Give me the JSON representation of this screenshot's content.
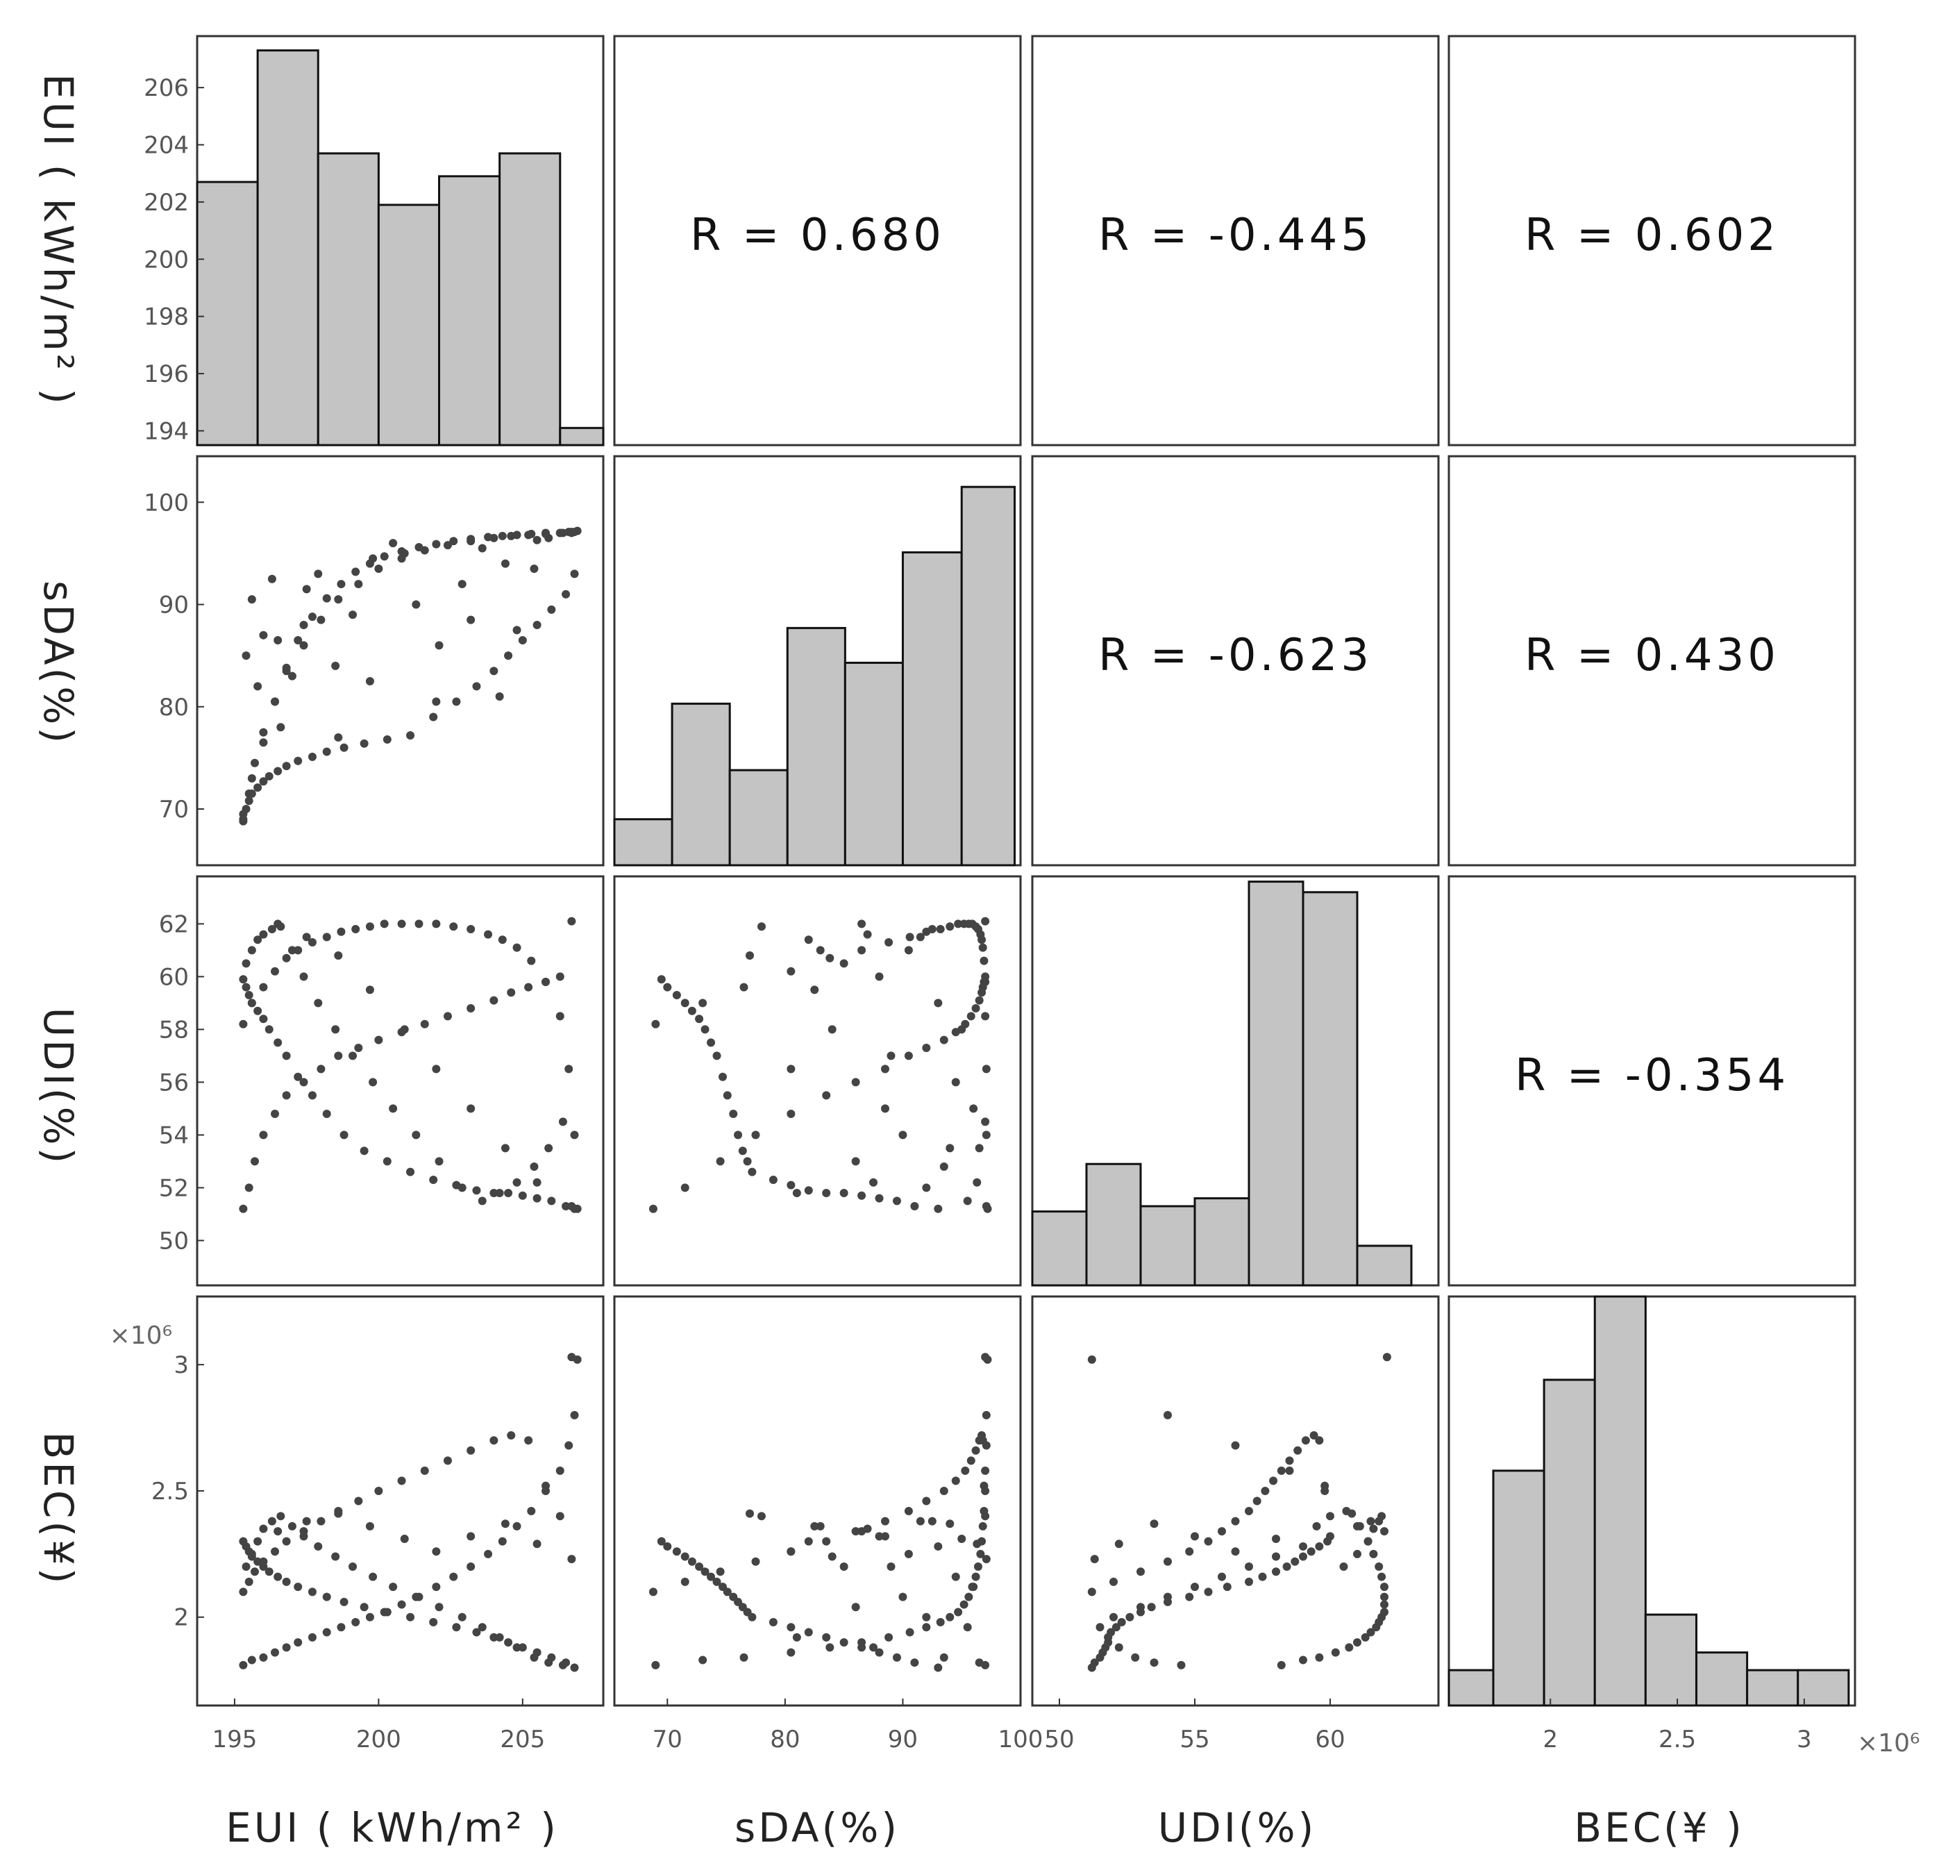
{
  "chart_data": {
    "type": "scatter-matrix",
    "variables": [
      "EUI ( kWh/m² )",
      "sDA(%)",
      "UDI(%)",
      "BEC(¥)"
    ],
    "row_labels": [
      "EUI ( kWh/m² )",
      "sDA(%)",
      "UDI(%)",
      "BEC(¥)"
    ],
    "column_labels": [
      "EUI ( kWh/m² )",
      "sDA(%)",
      "UDI(%)",
      "BEC(¥ )"
    ],
    "correlations": [
      {
        "row": 0,
        "col": 1,
        "text": "R = 0.680",
        "value": 0.68
      },
      {
        "row": 0,
        "col": 2,
        "text": "R = -0.445",
        "value": -0.445
      },
      {
        "row": 0,
        "col": 3,
        "text": "R = 0.602",
        "value": 0.602
      },
      {
        "row": 1,
        "col": 2,
        "text": "R = -0.623",
        "value": -0.623
      },
      {
        "row": 1,
        "col": 3,
        "text": "R = 0.430",
        "value": 0.43
      },
      {
        "row": 2,
        "col": 3,
        "text": "R = -0.354",
        "value": -0.354
      }
    ],
    "x_axes": [
      {
        "range": [
          193.7,
          207.8
        ],
        "ticks": [
          195,
          200,
          205
        ],
        "tick_labels": [
          "195",
          "200",
          "205"
        ]
      },
      {
        "range": [
          65.5,
          100.0
        ],
        "ticks": [
          70,
          80,
          90,
          100
        ],
        "tick_labels": [
          "70",
          "80",
          "90",
          "100"
        ]
      },
      {
        "range": [
          49.0,
          64.0
        ],
        "ticks": [
          50,
          55,
          60
        ],
        "tick_labels": [
          "50",
          "55",
          "60"
        ]
      },
      {
        "range": [
          1.6,
          3.2
        ],
        "ticks": [
          2,
          2.5,
          3
        ],
        "tick_labels": [
          "2",
          "2.5",
          "3"
        ],
        "exponent_label": "×10⁶"
      }
    ],
    "y_axes": [
      {
        "range": [
          193.5,
          207.8
        ],
        "ticks": [
          194,
          196,
          198,
          200,
          202,
          204,
          206
        ],
        "tick_labels": [
          "194",
          "196",
          "198",
          "200",
          "202",
          "204",
          "206"
        ]
      },
      {
        "range": [
          64.5,
          104.5
        ],
        "ticks": [
          70,
          80,
          90,
          100
        ],
        "tick_labels": [
          "70",
          "80",
          "90",
          "100"
        ]
      },
      {
        "range": [
          48.3,
          63.8
        ],
        "ticks": [
          50,
          52,
          54,
          56,
          58,
          60,
          62
        ],
        "tick_labels": [
          "50",
          "52",
          "54",
          "56",
          "58",
          "60",
          "62"
        ]
      },
      {
        "range": [
          1.65,
          3.27
        ],
        "ticks": [
          2,
          2.5,
          3
        ],
        "tick_labels": [
          "2",
          "2.5",
          "3"
        ],
        "exponent_label": "×10⁶"
      }
    ],
    "histograms": [
      {
        "variable": "EUI",
        "bin_edges": [
          193.7,
          195.8,
          197.9,
          200.0,
          202.1,
          204.2,
          206.3,
          207.8
        ],
        "heights": [
          202.7,
          207.3,
          203.7,
          201.9,
          202.9,
          203.7,
          194.1
        ]
      },
      {
        "variable": "sDA",
        "bin_edges": [
          65.5,
          70.4,
          75.3,
          80.2,
          85.1,
          90.0,
          95.0,
          99.5
        ],
        "heights": [
          69.0,
          80.3,
          73.8,
          87.7,
          84.3,
          95.1,
          101.5
        ]
      },
      {
        "variable": "UDI",
        "bin_edges": [
          49.0,
          51.0,
          53.0,
          55.0,
          57.0,
          59.0,
          61.0,
          63.0
        ],
        "heights": [
          51.1,
          52.9,
          51.3,
          51.6,
          63.6,
          63.2,
          49.8
        ]
      },
      {
        "variable": "BEC",
        "bin_edges": [
          1.6,
          1.775,
          1.975,
          2.175,
          2.375,
          2.575,
          2.775,
          2.975,
          3.175
        ],
        "heights": [
          1.79,
          2.58,
          2.94,
          3.27,
          2.01,
          1.86,
          1.79,
          1.79
        ]
      }
    ],
    "samples": {
      "EUI": [
        195.3,
        195.6,
        196.0,
        196.4,
        196.8,
        197.2,
        197.7,
        198.2,
        198.7,
        199.2,
        199.7,
        200.2,
        200.8,
        201.4,
        202.0,
        202.6,
        203.2,
        203.8,
        204.3,
        204.8,
        205.3,
        205.8,
        206.3,
        206.6,
        206.8,
        206.9,
        195.3,
        195.5,
        195.7,
        196.0,
        196.4,
        196.8,
        197.4,
        198.0,
        198.6,
        199.3,
        200.0,
        200.8,
        201.6,
        202.4,
        203.2,
        204.0,
        204.6,
        205.2,
        205.8,
        206.3,
        206.7,
        195.3,
        195.4,
        195.5,
        195.6,
        195.8,
        196.0,
        196.2,
        196.5,
        196.8,
        197.2,
        197.7,
        198.2,
        198.8,
        199.5,
        200.3,
        201.1,
        201.9,
        202.7,
        203.4,
        204.0,
        204.5,
        205.0,
        205.5,
        206.0,
        206.5,
        206.8,
        195.4,
        195.6,
        195.8,
        196.0,
        196.3,
        196.6,
        197.0,
        197.4,
        197.9,
        198.5,
        199.1,
        199.8,
        200.5,
        201.3,
        202.1,
        202.9,
        203.6,
        204.2,
        204.8,
        205.4,
        205.9,
        206.4,
        196.5,
        197.5,
        198.6,
        199.7,
        200.9,
        202.0,
        203.2,
        204.4,
        205.5,
        206.7
      ],
      "sDA": [
        69.0,
        73.0,
        76.5,
        80.5,
        83.8,
        86.5,
        88.8,
        90.6,
        92.0,
        93.2,
        94.0,
        94.7,
        95.2,
        95.6,
        95.9,
        96.2,
        96.4,
        96.6,
        96.7,
        96.8,
        96.9,
        97.0,
        97.0,
        97.1,
        97.1,
        97.2,
        68.8,
        71.5,
        74.5,
        77.5,
        80.5,
        83.5,
        86.0,
        88.5,
        90.5,
        92.0,
        93.5,
        94.5,
        95.3,
        95.8,
        96.2,
        96.5,
        96.7,
        96.8,
        96.9,
        97.0,
        97.0,
        69.5,
        70.0,
        70.8,
        71.5,
        72.1,
        72.7,
        73.2,
        73.7,
        74.2,
        74.7,
        75.1,
        75.6,
        76.0,
        76.4,
        76.8,
        77.2,
        79.0,
        80.5,
        82.0,
        83.5,
        85.0,
        86.5,
        88.0,
        89.5,
        91.0,
        93.0,
        85.0,
        90.5,
        82.0,
        87.0,
        92.5,
        78.0,
        83.0,
        88.0,
        93.0,
        84.0,
        89.0,
        94.5,
        96.0,
        90.0,
        86.0,
        92.0,
        95.5,
        81.0,
        87.5,
        93.5,
        96.5,
        97.0,
        86.5,
        91.5,
        77.0,
        82.5,
        95.0,
        80.5,
        88.5,
        94.0,
        96.3,
        97.1
      ],
      "UDI": [
        58.2,
        59.0,
        59.6,
        60.2,
        60.7,
        61.0,
        61.3,
        61.5,
        61.7,
        61.8,
        61.9,
        62.0,
        62.0,
        62.0,
        62.0,
        61.9,
        61.8,
        61.6,
        61.4,
        61.1,
        60.6,
        59.8,
        58.5,
        56.5,
        54.0,
        51.2,
        51.2,
        52.0,
        53.0,
        54.0,
        54.8,
        55.5,
        56.0,
        56.5,
        57.0,
        57.3,
        57.6,
        57.9,
        58.2,
        58.5,
        58.8,
        59.1,
        59.4,
        59.6,
        59.8,
        60.0,
        62.1,
        59.9,
        59.6,
        59.3,
        59.0,
        58.7,
        58.4,
        58.0,
        57.5,
        57.0,
        56.2,
        55.5,
        54.8,
        54.0,
        53.4,
        53.0,
        52.6,
        52.3,
        52.1,
        51.9,
        51.8,
        51.8,
        51.7,
        51.6,
        51.5,
        51.3,
        51.2,
        60.5,
        61.0,
        61.4,
        61.6,
        61.8,
        61.9,
        61.0,
        60.0,
        59.0,
        58.0,
        57.0,
        56.0,
        55.0,
        54.0,
        53.0,
        52.0,
        51.5,
        51.8,
        52.2,
        52.8,
        53.5,
        54.5,
        62.0,
        61.5,
        60.8,
        59.5,
        58.0,
        56.5,
        55.0,
        53.5,
        52.2,
        51.3
      ],
      "BEC": [
        1.81,
        1.83,
        1.84,
        1.86,
        1.88,
        1.9,
        1.92,
        1.94,
        1.96,
        1.98,
        2.0,
        2.02,
        2.05,
        2.08,
        2.12,
        2.16,
        2.2,
        2.25,
        2.3,
        2.36,
        2.42,
        2.5,
        2.58,
        2.68,
        2.8,
        3.02,
        2.1,
        2.14,
        2.18,
        2.22,
        2.26,
        2.3,
        2.34,
        2.38,
        2.42,
        2.46,
        2.5,
        2.54,
        2.58,
        2.62,
        2.66,
        2.7,
        2.72,
        2.7,
        2.52,
        2.4,
        3.03,
        2.3,
        2.28,
        2.26,
        2.24,
        2.22,
        2.2,
        2.18,
        2.16,
        2.14,
        2.12,
        2.1,
        2.08,
        2.06,
        2.04,
        2.02,
        2.0,
        1.98,
        1.96,
        1.94,
        1.92,
        1.9,
        1.88,
        1.86,
        1.84,
        1.82,
        1.8,
        2.2,
        2.25,
        2.3,
        2.35,
        2.38,
        2.4,
        2.36,
        2.32,
        2.28,
        2.24,
        2.2,
        2.16,
        2.12,
        2.08,
        2.04,
        2.0,
        1.96,
        1.92,
        1.88,
        1.84,
        1.82,
        1.81,
        2.34,
        2.38,
        2.41,
        2.36,
        2.31,
        2.26,
        2.32,
        2.37,
        2.29,
        2.23
      ]
    }
  }
}
